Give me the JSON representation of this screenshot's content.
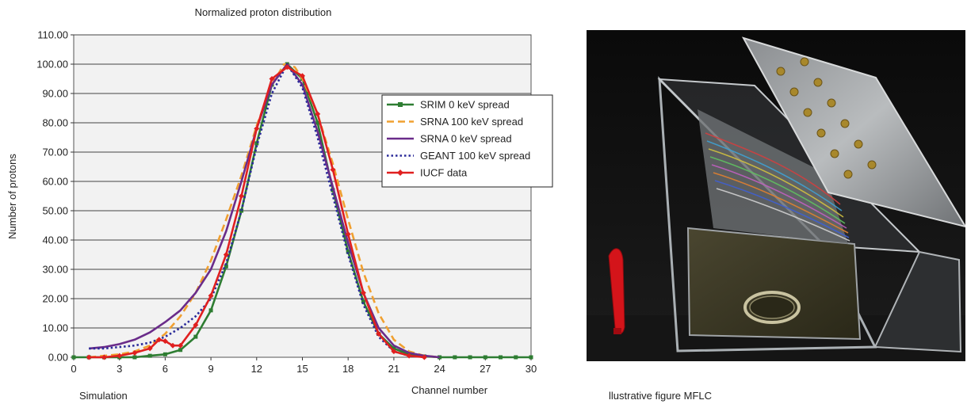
{
  "captions": {
    "left": "Simulation",
    "right": "llustrative figure MFLC"
  },
  "photo": {
    "subject": "MFLC detector assembly"
  },
  "colors": {
    "srim": "#2e7d32",
    "srna100": "#f0a030",
    "srna0": "#6a2c8a",
    "geant": "#2b2b9a",
    "iucf": "#e02020",
    "plot_bg": "#f2f2f2",
    "grid": "#444444"
  },
  "chart_data": {
    "type": "line",
    "title": "Normalized proton distribution",
    "xlabel": "Channel number",
    "ylabel": "Number of protons",
    "xlim": [
      0,
      30
    ],
    "ylim": [
      0,
      110
    ],
    "xticks": [
      0,
      3,
      6,
      9,
      12,
      15,
      18,
      21,
      24,
      27,
      30
    ],
    "yticks": [
      "0.00",
      "10.00",
      "20.00",
      "30.00",
      "40.00",
      "50.00",
      "60.00",
      "70.00",
      "80.00",
      "90.00",
      "100.00",
      "110.00"
    ],
    "grid": "horizontal",
    "legend_position": "right-inside",
    "series": [
      {
        "name": "SRIM 0 keV spread",
        "color": "#2e7d32",
        "style": "solid-square-markers",
        "x": [
          0,
          1,
          2,
          3,
          4,
          5,
          6,
          7,
          8,
          9,
          10,
          11,
          12,
          13,
          14,
          15,
          16,
          17,
          18,
          19,
          20,
          21,
          22,
          23,
          24,
          25,
          26,
          27,
          28,
          29,
          30
        ],
        "y": [
          0,
          0,
          0,
          0,
          0,
          0.5,
          1,
          2.5,
          7,
          16,
          31,
          50,
          73,
          93,
          100,
          95,
          80,
          57,
          36,
          19,
          8,
          3,
          1,
          0.3,
          0,
          0,
          0,
          0,
          0,
          0,
          0
        ]
      },
      {
        "name": "SRNA 100 keV spread",
        "color": "#f0a030",
        "style": "dashed",
        "x": [
          1,
          2,
          3,
          4,
          5,
          6,
          7,
          8,
          9,
          10,
          11,
          12,
          13,
          13.8,
          14.5,
          15,
          16,
          17,
          18,
          19,
          20,
          21,
          22,
          23,
          24
        ],
        "y": [
          0,
          0.5,
          1,
          2,
          4,
          8,
          14,
          22,
          33,
          47,
          62,
          79,
          93,
          100,
          99,
          95,
          83,
          66,
          47,
          29,
          15,
          6,
          2,
          0.5,
          0
        ]
      },
      {
        "name": "SRNA 0 keV spread",
        "color": "#6a2c8a",
        "style": "solid",
        "x": [
          1,
          2,
          3,
          4,
          5,
          6,
          7,
          8,
          9,
          10,
          11,
          12,
          13,
          14,
          15,
          16,
          17,
          18,
          19,
          20,
          21,
          22,
          23,
          24
        ],
        "y": [
          3,
          3.5,
          4.5,
          6,
          8.5,
          12,
          16,
          22,
          30,
          43,
          60,
          78,
          93,
          100,
          93,
          77,
          58,
          39,
          22,
          10,
          4,
          1.5,
          0.5,
          0
        ]
      },
      {
        "name": "GEANT 100 keV spread",
        "color": "#2b2b9a",
        "style": "dotted",
        "x": [
          1,
          2,
          3,
          4,
          5,
          6,
          7,
          8,
          9,
          10,
          11,
          12,
          13,
          14,
          15,
          16,
          17,
          18,
          19,
          20,
          21,
          22,
          23
        ],
        "y": [
          3,
          3,
          3.5,
          4,
          5,
          7,
          10,
          14,
          20,
          32,
          50,
          72,
          90,
          100,
          92,
          75,
          55,
          35,
          18,
          7,
          2,
          0.5,
          0
        ]
      },
      {
        "name": "IUCF data",
        "color": "#e02020",
        "style": "solid-diamond-markers",
        "x": [
          1,
          2,
          3,
          4,
          5,
          5.6,
          6,
          6.5,
          7,
          8,
          9,
          10,
          11,
          12,
          13,
          14,
          15,
          16,
          17,
          18,
          19,
          20,
          21,
          22,
          23
        ],
        "y": [
          0,
          0,
          0.5,
          1.5,
          3,
          6,
          5.5,
          4,
          4,
          11,
          21,
          35,
          55,
          78,
          95,
          99,
          96,
          83,
          64,
          42,
          22,
          8,
          2,
          0.5,
          0
        ]
      }
    ]
  }
}
